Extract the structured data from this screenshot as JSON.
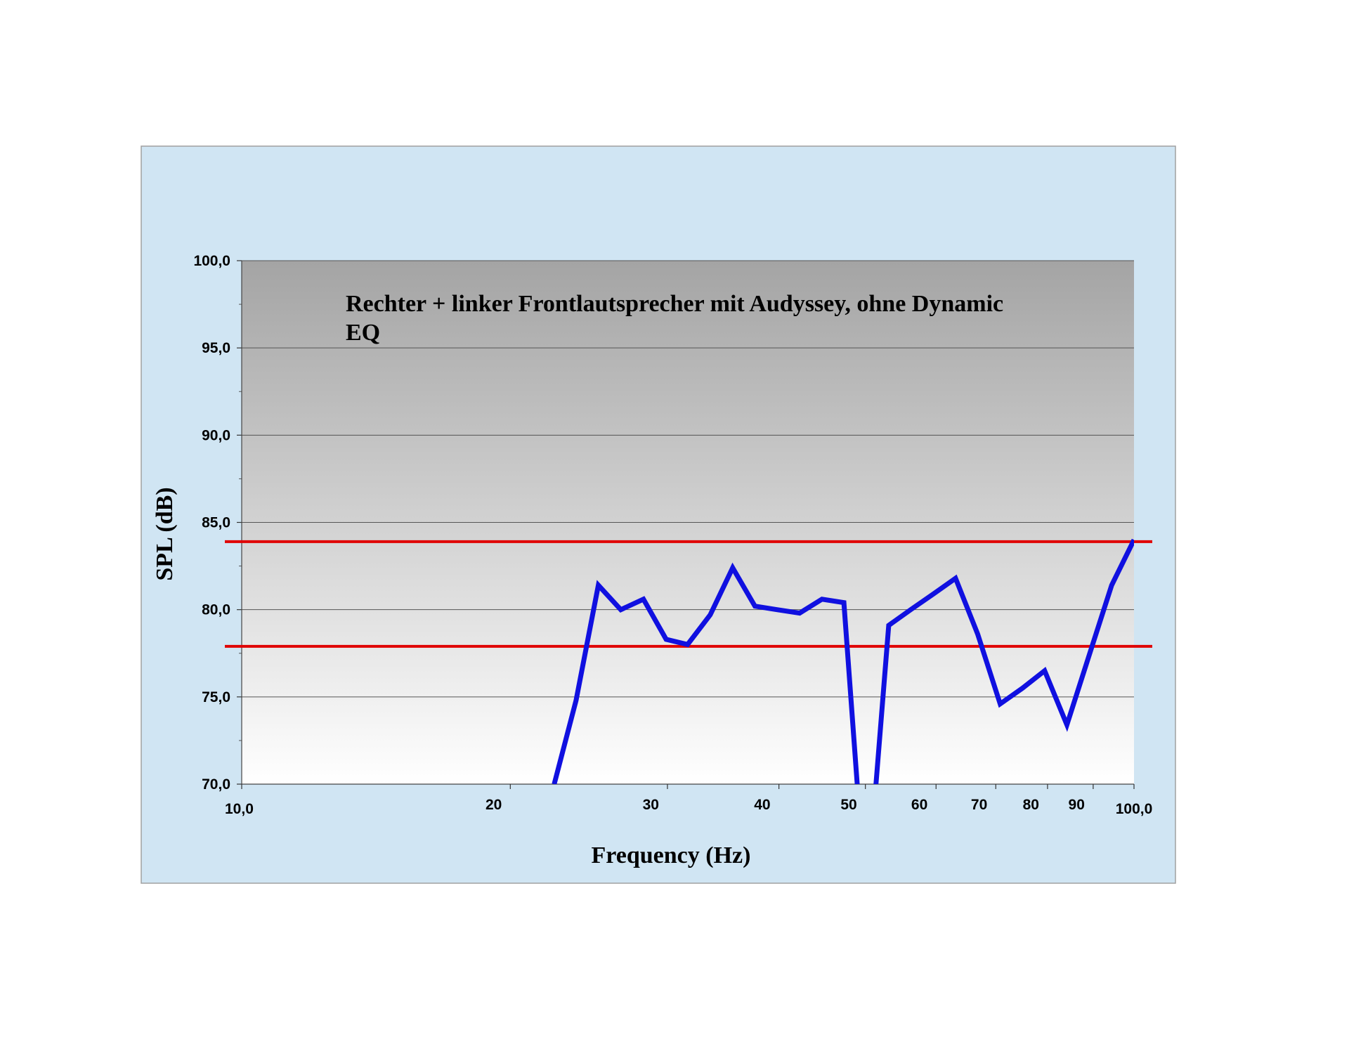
{
  "chart_data": {
    "type": "line",
    "title_lines": [
      "Rechter + linker Frontlautsprecher mit Audyssey, ohne Dynamic",
      "EQ"
    ],
    "xlabel": "Frequency (Hz)",
    "ylabel": "SPL (dB)",
    "x_scale": "log",
    "xlim": [
      10,
      100
    ],
    "ylim": [
      70,
      100
    ],
    "y_ticks": [
      {
        "value": 70,
        "label": "70,0"
      },
      {
        "value": 75,
        "label": "75,0"
      },
      {
        "value": 80,
        "label": "80,0"
      },
      {
        "value": 85,
        "label": "85,0"
      },
      {
        "value": 90,
        "label": "90,0"
      },
      {
        "value": 95,
        "label": "95,0"
      },
      {
        "value": 100,
        "label": "100,0"
      }
    ],
    "x_ticks": [
      {
        "value": 10,
        "label": "10,0"
      },
      {
        "value": 20,
        "label": "20"
      },
      {
        "value": 30,
        "label": "30"
      },
      {
        "value": 40,
        "label": "40"
      },
      {
        "value": 50,
        "label": "50"
      },
      {
        "value": 60,
        "label": "60"
      },
      {
        "value": 70,
        "label": "70"
      },
      {
        "value": 80,
        "label": "80"
      },
      {
        "value": 90,
        "label": "90"
      },
      {
        "value": 100,
        "label": "100,0"
      }
    ],
    "grid": "horizontal",
    "reference_lines": [
      {
        "y": 83.9,
        "color": "#e00000"
      },
      {
        "y": 77.9,
        "color": "#e00000"
      }
    ],
    "series": [
      {
        "color": "#1010e0",
        "x": [
          22.4,
          23.7,
          25.1,
          26.6,
          28.2,
          29.9,
          31.6,
          33.5,
          35.5,
          37.6,
          39.8,
          42.2,
          44.7,
          47.3,
          50.1,
          53.1,
          56.2,
          59.6,
          63.1,
          66.8,
          70.8,
          75.0,
          79.4,
          84.1,
          89.1,
          94.4,
          100.0
        ],
        "y": [
          70.0,
          74.8,
          81.4,
          80.0,
          80.6,
          78.3,
          78.0,
          79.7,
          82.4,
          80.2,
          80.0,
          79.8,
          80.6,
          80.4,
          63.0,
          79.1,
          80.0,
          80.9,
          81.8,
          78.6,
          74.6,
          75.5,
          76.5,
          73.4,
          77.4,
          81.4,
          84.0
        ]
      }
    ],
    "colors": {
      "outer_background": "#d0e5f3",
      "plot_gradient_top": "#a4a4a4",
      "plot_gradient_bottom": "#ffffff",
      "grid": "#555555",
      "border": "#a0a0a0"
    }
  }
}
